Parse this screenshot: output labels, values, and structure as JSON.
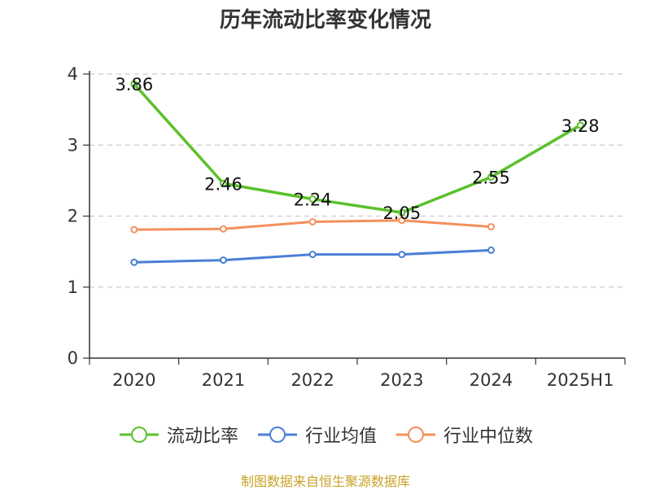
{
  "title": "历年流动比率变化情况",
  "source": "制图数据来自恒生聚源数据库",
  "chart_data": {
    "type": "line",
    "title": "历年流动比率变化情况",
    "categories": [
      "2020",
      "2021",
      "2022",
      "2023",
      "2024",
      "2025H1"
    ],
    "ylim": [
      0,
      4
    ],
    "yticks": [
      0,
      1,
      2,
      3,
      4
    ],
    "grid": true,
    "legend_position": "bottom",
    "series": [
      {
        "name": "流动比率",
        "color": "#5bc12b",
        "values": [
          3.86,
          2.46,
          2.24,
          2.05,
          2.55,
          3.28
        ],
        "labels": [
          "3.86",
          "2.46",
          "2.24",
          "2.05",
          "2.55",
          "3.28"
        ]
      },
      {
        "name": "行业均值",
        "color": "#4a7fd6",
        "values": [
          1.35,
          1.38,
          1.46,
          1.46,
          1.52,
          null
        ]
      },
      {
        "name": "行业中位数",
        "color": "#f4905a",
        "values": [
          1.81,
          1.82,
          1.92,
          1.94,
          1.85,
          null
        ]
      }
    ]
  }
}
